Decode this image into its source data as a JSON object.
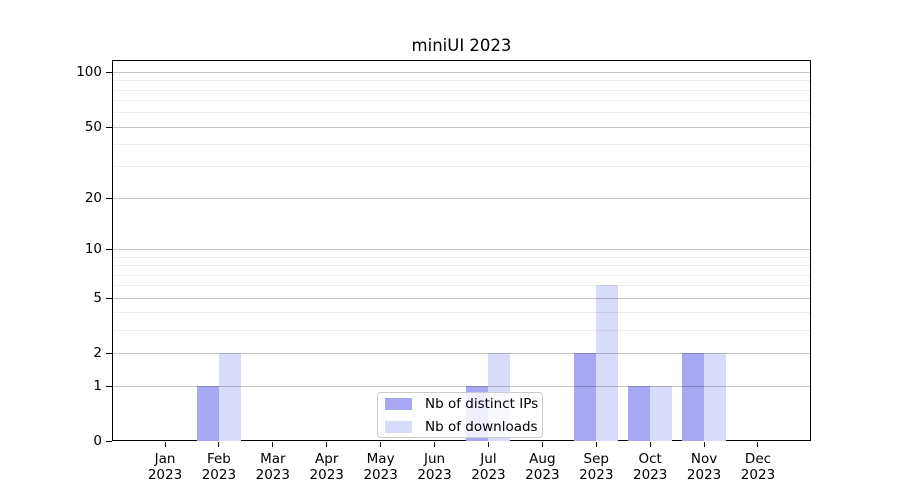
{
  "title": "miniUI 2023",
  "chart_data": {
    "type": "bar",
    "title": "miniUI 2023",
    "categories": [
      "Jan 2023",
      "Feb 2023",
      "Mar 2023",
      "Apr 2023",
      "May 2023",
      "Jun 2023",
      "Jul 2023",
      "Aug 2023",
      "Sep 2023",
      "Oct 2023",
      "Nov 2023",
      "Dec 2023"
    ],
    "month_labels": [
      "Jan",
      "Feb",
      "Mar",
      "Apr",
      "May",
      "Jun",
      "Jul",
      "Aug",
      "Sep",
      "Oct",
      "Nov",
      "Dec"
    ],
    "year_label": "2023",
    "series": [
      {
        "name": "Nb of distinct IPs",
        "color": "#a8a8f2",
        "values": [
          0,
          1,
          0,
          0,
          0,
          0,
          1,
          0,
          2,
          1,
          2,
          0
        ]
      },
      {
        "name": "Nb of downloads",
        "color": "#d9dbfa",
        "values": [
          0,
          2,
          0,
          0,
          0,
          0,
          2,
          0,
          6,
          1,
          2,
          0
        ]
      }
    ],
    "y_axis": {
      "scale": "log1p",
      "tick_labels": [
        "0",
        "1",
        "2",
        "5",
        "10",
        "20",
        "50",
        "100"
      ],
      "tick_values": [
        0,
        1,
        2,
        5,
        10,
        20,
        50,
        100
      ],
      "minor_gridline_values": [
        3,
        4,
        6,
        7,
        8,
        9,
        30,
        40,
        60,
        70,
        80,
        90
      ],
      "top_value": 115
    },
    "x_axis": {
      "label_lines": 2
    },
    "legend": {
      "position": "bottom-center",
      "entries": [
        "Nb of distinct IPs",
        "Nb of downloads"
      ]
    },
    "grid": true
  },
  "colors": {
    "bar_distinct_ips": "#a8a8f2",
    "bar_downloads": "#d9dbfa",
    "axis": "#000000",
    "legend_border": "#cccccc"
  }
}
